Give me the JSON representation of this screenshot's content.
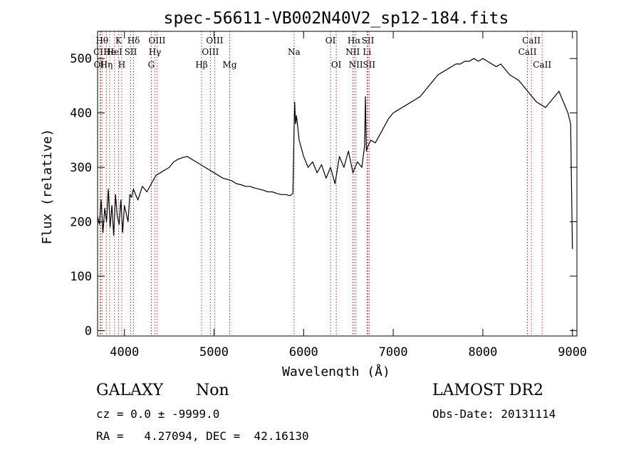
{
  "chart_data": {
    "type": "line",
    "title": "spec-56611-VB002N40V2_sp12-184.fits",
    "xlabel": "Wavelength (Å)",
    "ylabel": "Flux (relative)",
    "xlim": [
      3700,
      9050
    ],
    "ylim": [
      -10,
      550
    ],
    "xticks": [
      4000,
      5000,
      6000,
      7000,
      8000,
      9000
    ],
    "yticks": [
      0,
      100,
      200,
      300,
      400,
      500
    ],
    "grid": false,
    "series": [
      {
        "x": [
          3700,
          3720,
          3740,
          3760,
          3780,
          3800,
          3820,
          3840,
          3860,
          3880,
          3900,
          3920,
          3940,
          3960,
          3980,
          4000,
          4020,
          4040,
          4060,
          4080,
          4100,
          4150,
          4200,
          4250,
          4300,
          4350,
          4400,
          4450,
          4500,
          4550,
          4600,
          4650,
          4700,
          4750,
          4800,
          4850,
          4900,
          4950,
          5000,
          5050,
          5100,
          5150,
          5200,
          5250,
          5300,
          5350,
          5400,
          5450,
          5500,
          5550,
          5600,
          5650,
          5700,
          5750,
          5800,
          5850,
          5880,
          5900,
          5910,
          5920,
          5950,
          6000,
          6050,
          6100,
          6150,
          6200,
          6250,
          6300,
          6350,
          6400,
          6450,
          6500,
          6550,
          6600,
          6650,
          6680,
          6690,
          6700,
          6720,
          6750,
          6800,
          6850,
          6900,
          6950,
          7000,
          7050,
          7100,
          7150,
          7200,
          7250,
          7300,
          7350,
          7400,
          7450,
          7500,
          7550,
          7600,
          7650,
          7700,
          7750,
          7800,
          7850,
          7900,
          7950,
          8000,
          8050,
          8100,
          8150,
          8200,
          8250,
          8300,
          8350,
          8400,
          8450,
          8500,
          8550,
          8600,
          8650,
          8700,
          8750,
          8800,
          8850,
          8900,
          8950,
          8980,
          9000
        ],
        "y": [
          210,
          195,
          240,
          180,
          225,
          200,
          260,
          190,
          230,
          175,
          250,
          210,
          195,
          240,
          180,
          230,
          215,
          200,
          250,
          245,
          260,
          240,
          265,
          255,
          270,
          285,
          290,
          295,
          300,
          310,
          315,
          318,
          320,
          315,
          310,
          305,
          300,
          295,
          290,
          285,
          280,
          278,
          275,
          270,
          268,
          265,
          265,
          262,
          260,
          258,
          255,
          255,
          252,
          250,
          250,
          248,
          252,
          420,
          380,
          395,
          350,
          320,
          300,
          310,
          290,
          305,
          280,
          300,
          270,
          320,
          300,
          330,
          290,
          310,
          300,
          340,
          430,
          330,
          340,
          350,
          345,
          360,
          375,
          390,
          400,
          405,
          410,
          415,
          420,
          425,
          430,
          440,
          450,
          460,
          470,
          475,
          480,
          485,
          490,
          490,
          495,
          495,
          500,
          495,
          500,
          495,
          490,
          485,
          490,
          480,
          470,
          465,
          460,
          450,
          440,
          430,
          420,
          415,
          410,
          420,
          430,
          440,
          420,
          400,
          380,
          150
        ]
      }
    ],
    "lines": [
      {
        "x": 3728,
        "label": "CII",
        "row": 2
      },
      {
        "x": 3734,
        "label": "OII",
        "row": 3
      },
      {
        "x": 3750,
        "label": "Hθ",
        "row": 1
      },
      {
        "x": 3798,
        "label": "Hη",
        "row": 3
      },
      {
        "x": 3835,
        "label": "He",
        "row": 2
      },
      {
        "x": 3889,
        "label": "HeI",
        "row": 2
      },
      {
        "x": 3934,
        "label": "K",
        "row": 1
      },
      {
        "x": 3970,
        "label": "H",
        "row": 3
      },
      {
        "x": 4070,
        "label": "SII",
        "row": 2
      },
      {
        "x": 4102,
        "label": "Hδ",
        "row": 1
      },
      {
        "x": 4300,
        "label": "G",
        "row": 3
      },
      {
        "x": 4340,
        "label": "Hγ",
        "row": 2
      },
      {
        "x": 4363,
        "label": "OIII",
        "row": 1
      },
      {
        "x": 4861,
        "label": "Hβ",
        "row": 3
      },
      {
        "x": 4959,
        "label": "OIII",
        "row": 2
      },
      {
        "x": 5007,
        "label": "OIII",
        "row": 1
      },
      {
        "x": 5175,
        "label": "Mg",
        "row": 3
      },
      {
        "x": 5893,
        "label": "Na",
        "row": 2
      },
      {
        "x": 6300,
        "label": "OI",
        "row": 1
      },
      {
        "x": 6364,
        "label": "OI",
        "row": 3
      },
      {
        "x": 6548,
        "label": "NII",
        "row": 2
      },
      {
        "x": 6563,
        "label": "Hα",
        "row": 1
      },
      {
        "x": 6583,
        "label": "NII",
        "row": 3
      },
      {
        "x": 6707,
        "label": "Li",
        "row": 2
      },
      {
        "x": 6717,
        "label": "SII",
        "row": 1
      },
      {
        "x": 6731,
        "label": "SII",
        "row": 3
      },
      {
        "x": 8498,
        "label": "CaII",
        "row": 2
      },
      {
        "x": 8542,
        "label": "CaII",
        "row": 1
      },
      {
        "x": 8662,
        "label": "CaII",
        "row": 3
      }
    ]
  },
  "info": {
    "class": "GALAXY",
    "subclass": "Non",
    "cz": "cz = 0.0 ± -9999.0",
    "radec": "RA =   4.27094, DEC =  42.16130",
    "survey": "LAMOST DR2",
    "obsdate": "Obs-Date: 20131114"
  }
}
